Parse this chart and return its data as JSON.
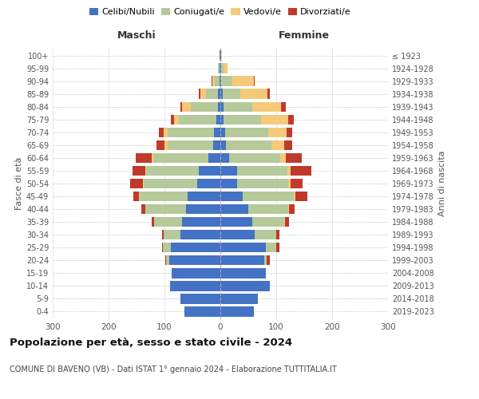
{
  "age_groups": [
    "0-4",
    "5-9",
    "10-14",
    "15-19",
    "20-24",
    "25-29",
    "30-34",
    "35-39",
    "40-44",
    "45-49",
    "50-54",
    "55-59",
    "60-64",
    "65-69",
    "70-74",
    "75-79",
    "80-84",
    "85-89",
    "90-94",
    "95-99",
    "100+"
  ],
  "birth_years": [
    "2019-2023",
    "2014-2018",
    "2009-2013",
    "2004-2008",
    "1999-2003",
    "1994-1998",
    "1989-1993",
    "1984-1988",
    "1979-1983",
    "1974-1978",
    "1969-1973",
    "1964-1968",
    "1959-1963",
    "1954-1958",
    "1949-1953",
    "1944-1948",
    "1939-1943",
    "1934-1938",
    "1929-1933",
    "1924-1928",
    "≤ 1923"
  ],
  "maschi": {
    "celibi": [
      65,
      72,
      90,
      87,
      92,
      88,
      72,
      68,
      62,
      58,
      42,
      38,
      22,
      13,
      12,
      7,
      5,
      4,
      2,
      1,
      1
    ],
    "coniugati": [
      0,
      0,
      0,
      0,
      5,
      15,
      30,
      50,
      72,
      87,
      95,
      95,
      98,
      82,
      82,
      68,
      48,
      22,
      8,
      3,
      1
    ],
    "vedovi": [
      0,
      0,
      0,
      0,
      0,
      0,
      0,
      0,
      0,
      1,
      2,
      2,
      3,
      5,
      8,
      8,
      15,
      10,
      5,
      1,
      0
    ],
    "divorziati": [
      0,
      0,
      0,
      0,
      1,
      2,
      2,
      5,
      8,
      10,
      22,
      22,
      28,
      15,
      8,
      5,
      3,
      2,
      1,
      0,
      0
    ]
  },
  "femmine": {
    "nubili": [
      60,
      67,
      88,
      82,
      78,
      82,
      62,
      57,
      50,
      40,
      30,
      30,
      15,
      10,
      8,
      5,
      5,
      4,
      2,
      1,
      1
    ],
    "coniugate": [
      0,
      0,
      0,
      0,
      5,
      18,
      38,
      57,
      72,
      92,
      92,
      90,
      92,
      82,
      78,
      68,
      52,
      32,
      20,
      4,
      1
    ],
    "vedove": [
      0,
      0,
      0,
      0,
      0,
      0,
      0,
      1,
      1,
      2,
      3,
      5,
      10,
      22,
      32,
      48,
      52,
      48,
      38,
      8,
      1
    ],
    "divorziate": [
      0,
      0,
      0,
      0,
      5,
      5,
      5,
      8,
      10,
      22,
      22,
      38,
      28,
      15,
      10,
      10,
      8,
      5,
      1,
      0,
      0
    ]
  },
  "colors": {
    "celibi_nubili": "#4472c4",
    "coniugati": "#b5c99a",
    "vedovi": "#f5c97a",
    "divorziati": "#c0392b"
  },
  "xlim": 300,
  "title": "Popolazione per età, sesso e stato civile - 2024",
  "subtitle": "COMUNE DI BAVENO (VB) - Dati ISTAT 1° gennaio 2024 - Elaborazione TUTTITALIA.IT",
  "ylabel_left": "Fasce di età",
  "ylabel_right": "Anni di nascita",
  "xlabel_left": "Maschi",
  "xlabel_right": "Femmine"
}
